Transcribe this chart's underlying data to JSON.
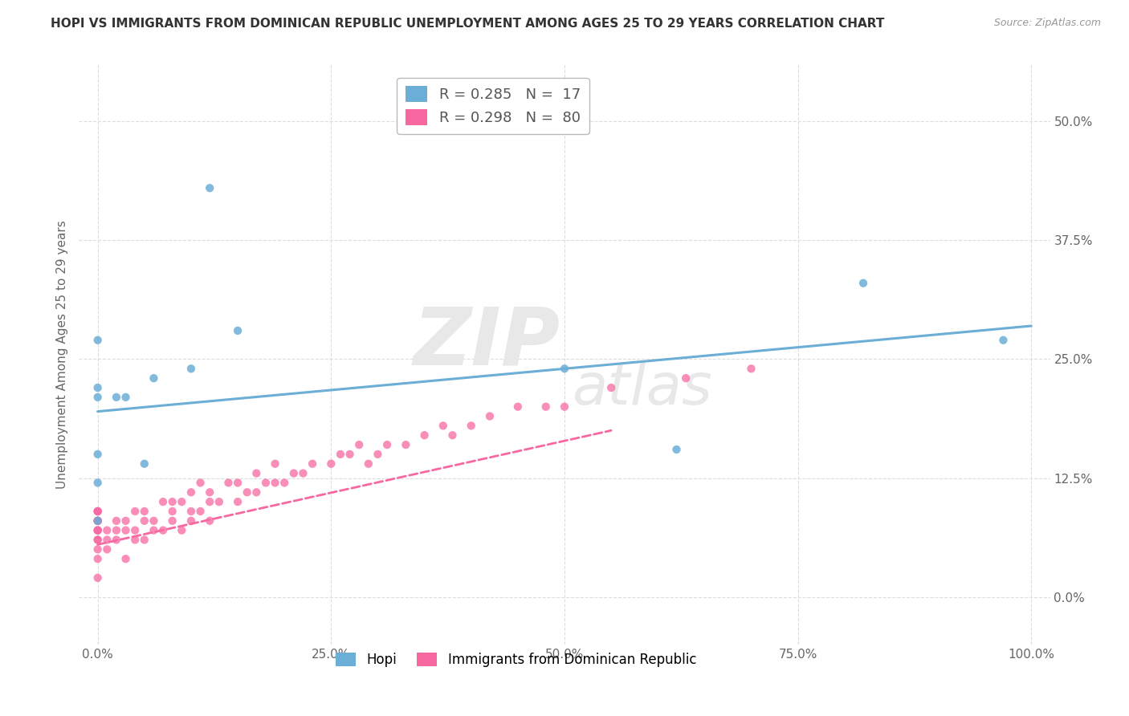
{
  "title": "HOPI VS IMMIGRANTS FROM DOMINICAN REPUBLIC UNEMPLOYMENT AMONG AGES 25 TO 29 YEARS CORRELATION CHART",
  "source": "Source: ZipAtlas.com",
  "ylabel": "Unemployment Among Ages 25 to 29 years",
  "xlim": [
    -0.02,
    1.02
  ],
  "ylim": [
    -0.05,
    0.56
  ],
  "xticks": [
    0.0,
    0.25,
    0.5,
    0.75,
    1.0
  ],
  "xtick_labels": [
    "0.0%",
    "25.0%",
    "50.0%",
    "75.0%",
    "100.0%"
  ],
  "yticks": [
    0.0,
    0.125,
    0.25,
    0.375,
    0.5
  ],
  "ytick_labels": [
    "0.0%",
    "12.5%",
    "25.0%",
    "37.5%",
    "50.0%"
  ],
  "legend_hopi_R": "R = 0.285",
  "legend_hopi_N": "N =  17",
  "legend_dr_R": "R = 0.298",
  "legend_dr_N": "N =  80",
  "hopi_color": "#6baed6",
  "dr_color": "#f768a1",
  "hopi_scatter_x": [
    0.0,
    0.0,
    0.0,
    0.0,
    0.0,
    0.0,
    0.02,
    0.03,
    0.05,
    0.06,
    0.1,
    0.12,
    0.15,
    0.5,
    0.62,
    0.82,
    0.97
  ],
  "hopi_scatter_y": [
    0.08,
    0.21,
    0.22,
    0.27,
    0.12,
    0.15,
    0.21,
    0.21,
    0.14,
    0.23,
    0.24,
    0.43,
    0.28,
    0.24,
    0.155,
    0.33,
    0.27
  ],
  "dr_scatter_x": [
    0.0,
    0.0,
    0.0,
    0.0,
    0.0,
    0.0,
    0.0,
    0.0,
    0.0,
    0.0,
    0.0,
    0.0,
    0.0,
    0.0,
    0.0,
    0.01,
    0.01,
    0.01,
    0.02,
    0.02,
    0.02,
    0.03,
    0.03,
    0.03,
    0.04,
    0.04,
    0.04,
    0.05,
    0.05,
    0.05,
    0.06,
    0.06,
    0.07,
    0.07,
    0.08,
    0.08,
    0.08,
    0.09,
    0.09,
    0.1,
    0.1,
    0.1,
    0.11,
    0.11,
    0.12,
    0.12,
    0.12,
    0.13,
    0.14,
    0.15,
    0.15,
    0.16,
    0.17,
    0.17,
    0.18,
    0.19,
    0.19,
    0.2,
    0.21,
    0.22,
    0.23,
    0.25,
    0.26,
    0.27,
    0.28,
    0.29,
    0.3,
    0.31,
    0.33,
    0.35,
    0.37,
    0.38,
    0.4,
    0.42,
    0.45,
    0.48,
    0.5,
    0.55,
    0.63,
    0.7
  ],
  "dr_scatter_y": [
    0.04,
    0.05,
    0.06,
    0.06,
    0.07,
    0.07,
    0.07,
    0.08,
    0.08,
    0.08,
    0.08,
    0.09,
    0.09,
    0.09,
    0.02,
    0.05,
    0.06,
    0.07,
    0.06,
    0.07,
    0.08,
    0.04,
    0.07,
    0.08,
    0.06,
    0.07,
    0.09,
    0.06,
    0.08,
    0.09,
    0.07,
    0.08,
    0.07,
    0.1,
    0.08,
    0.09,
    0.1,
    0.07,
    0.1,
    0.08,
    0.09,
    0.11,
    0.09,
    0.12,
    0.08,
    0.1,
    0.11,
    0.1,
    0.12,
    0.1,
    0.12,
    0.11,
    0.11,
    0.13,
    0.12,
    0.12,
    0.14,
    0.12,
    0.13,
    0.13,
    0.14,
    0.14,
    0.15,
    0.15,
    0.16,
    0.14,
    0.15,
    0.16,
    0.16,
    0.17,
    0.18,
    0.17,
    0.18,
    0.19,
    0.2,
    0.2,
    0.2,
    0.22,
    0.23,
    0.24
  ],
  "hopi_trend_x": [
    0.0,
    1.0
  ],
  "hopi_trend_y": [
    0.195,
    0.285
  ],
  "dr_trend_x": [
    0.0,
    0.55
  ],
  "dr_trend_y": [
    0.055,
    0.175
  ],
  "background_color": "#ffffff",
  "grid_color": "#dddddd",
  "title_fontsize": 11,
  "source_fontsize": 9,
  "tick_fontsize": 11,
  "ylabel_fontsize": 11
}
